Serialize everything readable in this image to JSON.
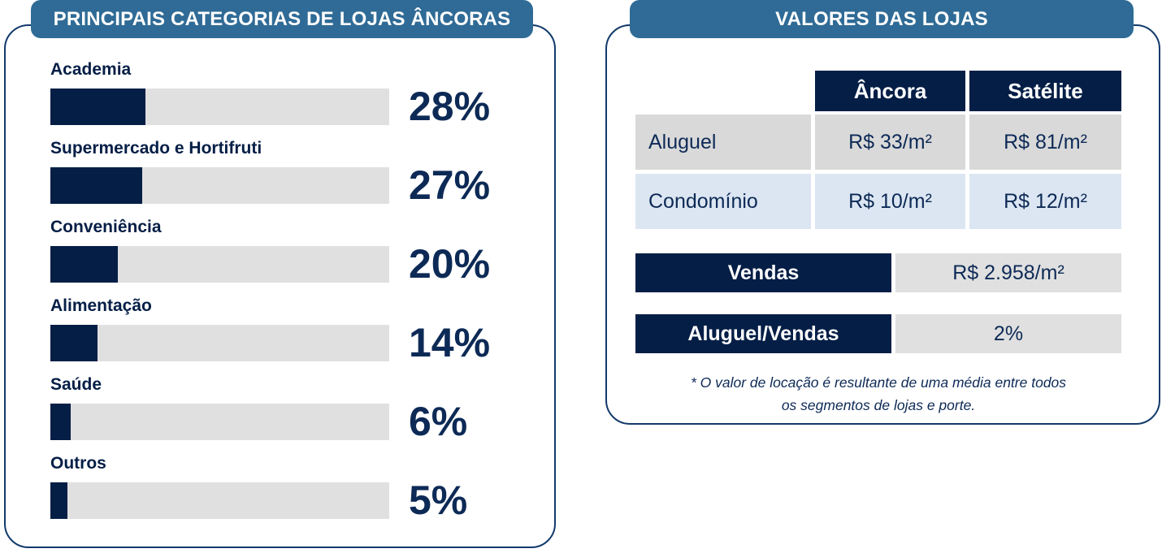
{
  "colors": {
    "navy": "#041e46",
    "navy_text": "#0d2a56",
    "steel_blue_header": "#2f6b96",
    "bar_track_gray": "#e0e0e0",
    "table_cell_gray": "#d9d9d9",
    "table_cell_light_blue": "#dce6f2",
    "panel_border": "#123a6b",
    "white": "#ffffff"
  },
  "left_panel": {
    "title": "PRINCIPAIS CATEGORIAS DE LOJAS ÂNCORAS",
    "bars": [
      {
        "label": "Academia",
        "value": 28,
        "value_label": "28%"
      },
      {
        "label": "Supermercado e Hortifruti",
        "value": 27,
        "value_label": "27%"
      },
      {
        "label": "Conveniência",
        "value": 20,
        "value_label": "20%"
      },
      {
        "label": "Alimentação",
        "value": 14,
        "value_label": "14%"
      },
      {
        "label": "Saúde",
        "value": 6,
        "value_label": "6%"
      },
      {
        "label": "Outros",
        "value": 5,
        "value_label": "5%"
      }
    ]
  },
  "right_panel": {
    "title": "VALORES DAS LOJAS",
    "table": {
      "column_headers": [
        "Âncora",
        "Satélite"
      ],
      "rows": [
        {
          "label": "Aluguel",
          "ancora": "R$ 33/m²",
          "satelite": "R$ 81/m²"
        },
        {
          "label": "Condomínio",
          "ancora": "R$ 10/m²",
          "satelite": "R$ 12/m²"
        }
      ]
    },
    "summary_rows": [
      {
        "label": "Vendas",
        "value": "R$ 2.958/m²"
      },
      {
        "label": "Aluguel/Vendas",
        "value": "2%"
      }
    ],
    "footnote_line1": "* O valor de locação é resultante de uma média entre todos",
    "footnote_line2": "os segmentos de lojas e porte."
  },
  "chart_data": [
    {
      "type": "bar",
      "orientation": "horizontal",
      "title": "PRINCIPAIS CATEGORIAS DE LOJAS ÂNCORAS",
      "categories": [
        "Academia",
        "Supermercado e Hortifruti",
        "Conveniência",
        "Alimentação",
        "Saúde",
        "Outros"
      ],
      "values": [
        28,
        27,
        20,
        14,
        6,
        5
      ],
      "data_labels": [
        "28%",
        "27%",
        "20%",
        "14%",
        "6%",
        "5%"
      ],
      "unit": "%",
      "xlim": [
        0,
        100
      ],
      "grid": false,
      "legend": false,
      "bar_color": "#041e46",
      "track_color": "#e0e0e0"
    },
    {
      "type": "table",
      "title": "VALORES DAS LOJAS",
      "columns": [
        "",
        "Âncora",
        "Satélite"
      ],
      "rows": [
        [
          "Aluguel",
          "R$ 33/m²",
          "R$ 81/m²"
        ],
        [
          "Condomínio",
          "R$ 10/m²",
          "R$ 12/m²"
        ],
        [
          "Vendas",
          "R$ 2.958/m²"
        ],
        [
          "Aluguel/Vendas",
          "2%"
        ]
      ],
      "footnote": "* O valor de locação é resultante de uma média entre todos os segmentos de lojas e porte."
    }
  ]
}
